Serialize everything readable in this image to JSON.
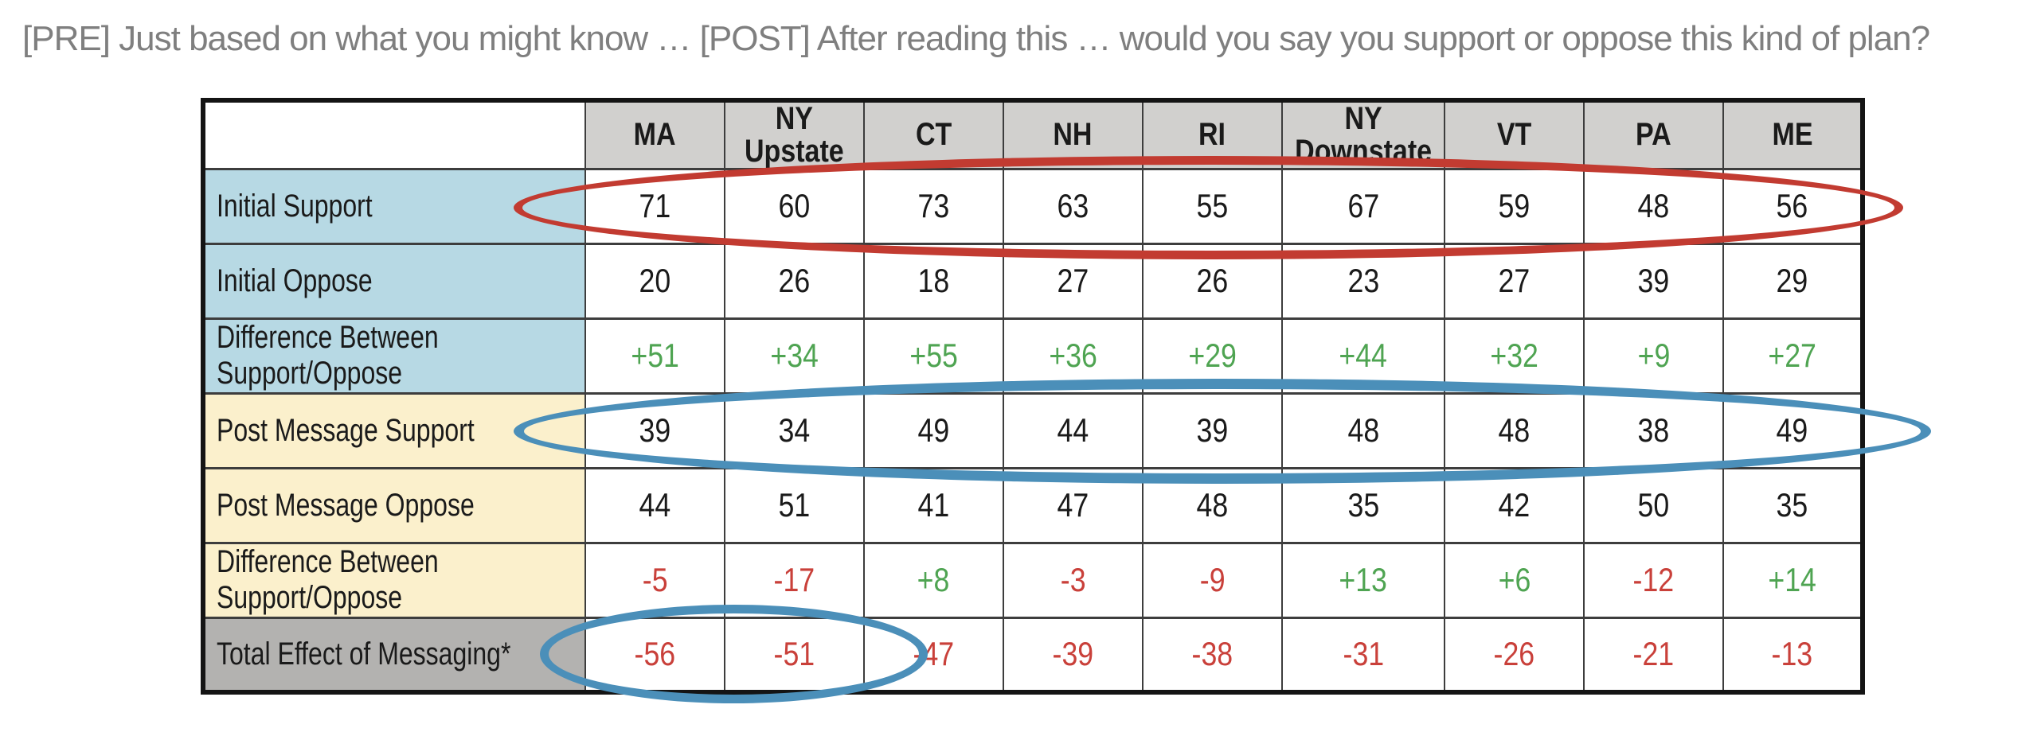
{
  "colors": {
    "title_text": "#7f7f7f",
    "header_bg": "#d1d0ce",
    "pre_label_bg": "#b7d9e4",
    "post_label_bg": "#fbf0cc",
    "total_label_bg": "#b3b2b0",
    "positive_text": "#4fa452",
    "negative_text": "#c9403a",
    "red_ellipse": "#c23b31",
    "blue_ellipse": "#4b8fb9"
  },
  "chart_data": {
    "type": "table",
    "title": "[PRE] Just based on what you might know … [POST] After reading this … would you say you support or oppose this kind of plan?",
    "columns": [
      "MA",
      "NY\nUpstate",
      "CT",
      "NH",
      "RI",
      "NY\nDownstate",
      "VT",
      "PA",
      "ME"
    ],
    "rows": [
      {
        "label": "Initial Support",
        "group": "pre",
        "values": [
          "71",
          "60",
          "73",
          "63",
          "55",
          "67",
          "59",
          "48",
          "56"
        ]
      },
      {
        "label": "Initial Oppose",
        "group": "pre",
        "values": [
          "20",
          "26",
          "18",
          "27",
          "26",
          "23",
          "27",
          "39",
          "29"
        ]
      },
      {
        "label": "Difference Between\nSupport/Oppose",
        "group": "pre",
        "values": [
          "+51",
          "+34",
          "+55",
          "+36",
          "+29",
          "+44",
          "+32",
          "+9",
          "+27"
        ]
      },
      {
        "label": "Post Message Support",
        "group": "post",
        "values": [
          "39",
          "34",
          "49",
          "44",
          "39",
          "48",
          "48",
          "38",
          "49"
        ]
      },
      {
        "label": "Post Message Oppose",
        "group": "post",
        "values": [
          "44",
          "51",
          "41",
          "47",
          "48",
          "35",
          "42",
          "50",
          "35"
        ]
      },
      {
        "label": "Difference Between\nSupport/Oppose",
        "group": "post",
        "values": [
          "-5",
          "-17",
          "+8",
          "-3",
          "-9",
          "+13",
          "+6",
          "-12",
          "+14"
        ]
      },
      {
        "label": "Total Effect of Messaging*",
        "group": "total",
        "values": [
          "-56",
          "-51",
          "-47",
          "-39",
          "-38",
          "-31",
          "-26",
          "-21",
          "-13"
        ]
      }
    ],
    "annotations": [
      {
        "id": "ellipse-red",
        "shape": "ellipse",
        "color": "#c23b31",
        "encircles": "Initial Support row values"
      },
      {
        "id": "ellipse-blue-post",
        "shape": "ellipse",
        "color": "#4b8fb9",
        "encircles": "Post Message Support row values"
      },
      {
        "id": "ellipse-blue-total",
        "shape": "ellipse",
        "color": "#4b8fb9",
        "encircles": "Total Effect of Messaging values for MA, NY Upstate, CT"
      }
    ]
  }
}
